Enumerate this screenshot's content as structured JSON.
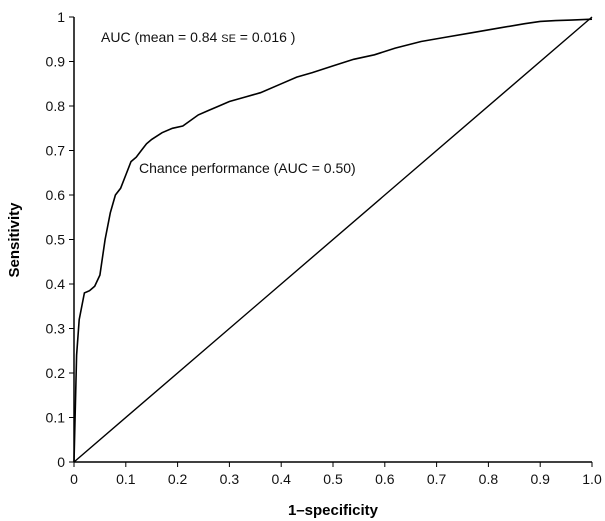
{
  "chart_data": {
    "type": "line",
    "title": "",
    "xlabel": "1–specificity",
    "ylabel": "Sensitivity",
    "xlim": [
      0,
      1.0
    ],
    "ylim": [
      0,
      1
    ],
    "x_ticks": [
      "0",
      "0.1",
      "0.2",
      "0.3",
      "0.4",
      "0.5",
      "0.6",
      "0.7",
      "0.8",
      "0.9",
      "1.0"
    ],
    "y_ticks": [
      "0",
      "0.1",
      "0.2",
      "0.3",
      "0.4",
      "0.5",
      "0.6",
      "0.7",
      "0.8",
      "0.9",
      "1"
    ],
    "grid": false,
    "legend": "none",
    "annotations": {
      "auc": {
        "prefix": "AUC (mean = 0.84 ",
        "se": "SE",
        "suffix": " = 0.016 )"
      },
      "chance": "Chance performance (AUC = 0.50)"
    },
    "series": [
      {
        "x": [
          0,
          0.005,
          0.01,
          0.02,
          0.03,
          0.04,
          0.05,
          0.06,
          0.07,
          0.08,
          0.09,
          0.1,
          0.11,
          0.12,
          0.13,
          0.14,
          0.15,
          0.17,
          0.19,
          0.21,
          0.24,
          0.26,
          0.28,
          0.3,
          0.33,
          0.36,
          0.4,
          0.43,
          0.46,
          0.5,
          0.54,
          0.58,
          0.62,
          0.67,
          0.72,
          0.77,
          0.82,
          0.87,
          0.9,
          0.93,
          0.96,
          1.0
        ],
        "y": [
          0,
          0.24,
          0.32,
          0.38,
          0.385,
          0.395,
          0.42,
          0.5,
          0.56,
          0.6,
          0.615,
          0.645,
          0.675,
          0.685,
          0.7,
          0.715,
          0.725,
          0.74,
          0.75,
          0.755,
          0.78,
          0.79,
          0.8,
          0.81,
          0.82,
          0.83,
          0.85,
          0.865,
          0.875,
          0.89,
          0.905,
          0.915,
          0.93,
          0.945,
          0.955,
          0.965,
          0.975,
          0.985,
          0.99,
          0.992,
          0.993,
          0.995
        ]
      },
      {
        "x": [
          0,
          1.0
        ],
        "y": [
          0,
          1.0
        ]
      }
    ]
  }
}
